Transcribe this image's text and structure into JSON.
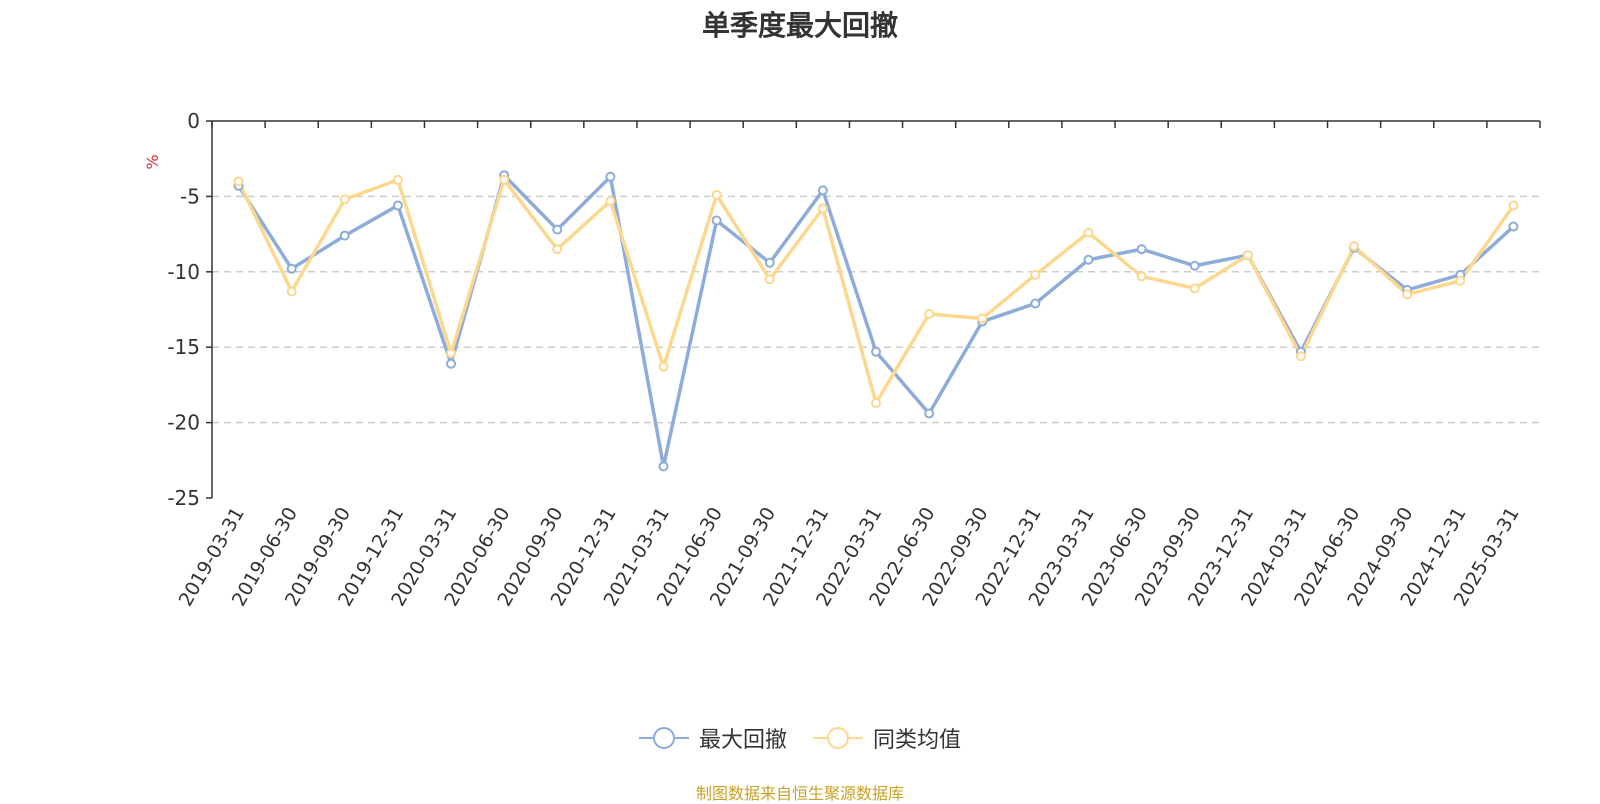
{
  "chart_data": {
    "type": "line",
    "title": "单季度最大回撤",
    "ylabel": "%",
    "ylim": [
      -25,
      0
    ],
    "yticks": [
      0,
      -5,
      -10,
      -15,
      -20,
      -25
    ],
    "grid": true,
    "legend_position": "bottom",
    "categories": [
      "2019-03-31",
      "2019-06-30",
      "2019-09-30",
      "2019-12-31",
      "2020-03-31",
      "2020-06-30",
      "2020-09-30",
      "2020-12-31",
      "2021-03-31",
      "2021-06-30",
      "2021-09-30",
      "2021-12-31",
      "2022-03-31",
      "2022-06-30",
      "2022-09-30",
      "2022-12-31",
      "2023-03-31",
      "2023-06-30",
      "2023-09-30",
      "2023-12-31",
      "2024-03-31",
      "2024-06-30",
      "2024-09-30",
      "2024-12-31",
      "2025-03-31"
    ],
    "series": [
      {
        "name": "最大回撤",
        "color": "#8eacd9",
        "values": [
          -4.3,
          -9.8,
          -7.6,
          -5.6,
          -16.1,
          -3.6,
          -7.2,
          -3.7,
          -22.9,
          -6.6,
          -9.4,
          -4.6,
          -15.3,
          -19.4,
          -13.3,
          -12.1,
          -9.2,
          -8.5,
          -9.6,
          -8.9,
          -15.3,
          -8.4,
          -11.2,
          -10.2,
          -7.0
        ]
      },
      {
        "name": "同类均值",
        "color": "#fcd88f",
        "values": [
          -4.0,
          -11.3,
          -5.2,
          -3.9,
          -15.4,
          -3.9,
          -8.5,
          -5.3,
          -16.3,
          -4.9,
          -10.5,
          -5.8,
          -18.7,
          -12.8,
          -13.1,
          -10.2,
          -7.4,
          -10.3,
          -11.1,
          -8.9,
          -15.6,
          -8.3,
          -11.5,
          -10.6,
          -5.6
        ]
      }
    ],
    "source_note": "制图数据来自恒生聚源数据库"
  }
}
